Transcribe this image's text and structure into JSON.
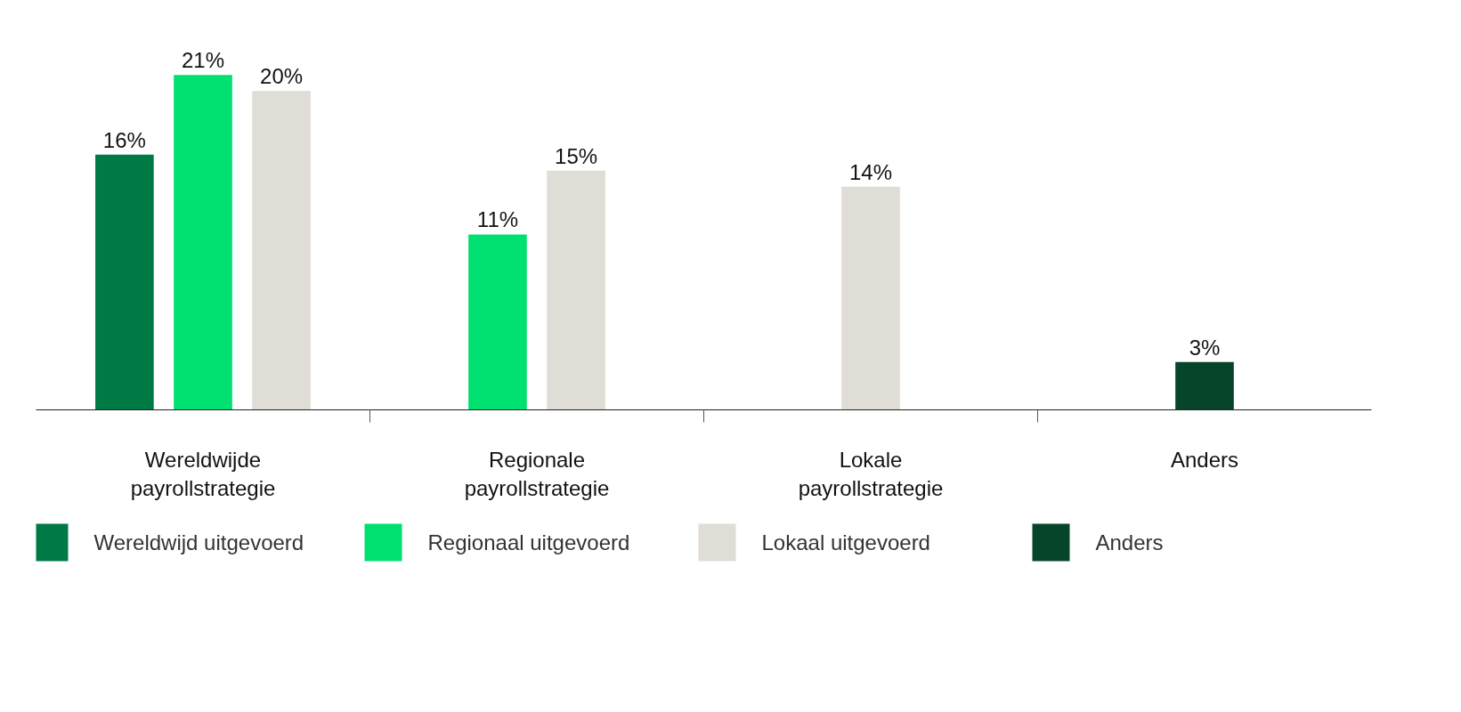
{
  "chart_data": {
    "type": "bar",
    "categories": [
      "Wereldwijde payrollstrategie",
      "Regionale payrollstrategie",
      "Lokale payrollstrategie",
      "Anders"
    ],
    "series": [
      {
        "name": "Wereldwijd uitgevoerd",
        "color": "#007a45",
        "values": [
          16,
          null,
          null,
          null
        ],
        "value_labels": [
          "16%",
          null,
          null,
          null
        ]
      },
      {
        "name": "Regionaal uitgevoerd",
        "color": "#00e070",
        "values": [
          21,
          11,
          null,
          null
        ],
        "value_labels": [
          "21%",
          "11%",
          null,
          null
        ]
      },
      {
        "name": "Lokaal uitgevoerd",
        "color": "#e0ddd6",
        "values": [
          20,
          15,
          14,
          null
        ],
        "value_labels": [
          "20%",
          "15%",
          "14%",
          null
        ]
      },
      {
        "name": "Anders",
        "color": "#064529",
        "values": [
          null,
          null,
          null,
          3
        ],
        "value_labels": [
          null,
          null,
          null,
          "3%"
        ]
      }
    ],
    "legend": "bottom",
    "grid": false
  }
}
